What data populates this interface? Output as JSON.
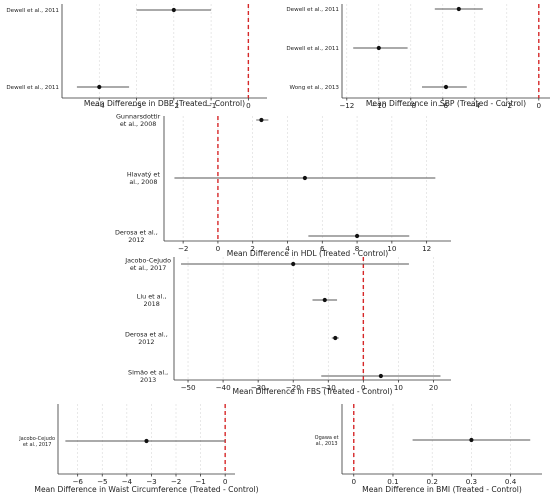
{
  "chart_data": [
    {
      "type": "scatter",
      "xlabel": "Mean Difference in DBP (Treated - Control)",
      "xlim": [
        -5,
        0.5
      ],
      "xticks": [
        -4,
        -3,
        -2,
        -1,
        0
      ],
      "studies": [
        {
          "label": "Dewell et al., 2011",
          "mean": -2.0,
          "ci": [
            -3.0,
            -1.0
          ]
        },
        {
          "label": "Dewell et al., 2011",
          "mean": -4.0,
          "ci": [
            -4.6,
            -3.2
          ]
        }
      ]
    },
    {
      "type": "scatter",
      "xlabel": "Mean Difference in SBP (Treated - Control)",
      "xlim": [
        -12.3,
        0.7
      ],
      "xticks": [
        -12,
        -10,
        -8,
        -6,
        -4,
        -2,
        0
      ],
      "studies": [
        {
          "label": "Dewell et al., 2011",
          "mean": -5.0,
          "ci": [
            -6.5,
            -3.5
          ]
        },
        {
          "label": "Dewell et al., 2011",
          "mean": -10.0,
          "ci": [
            -11.6,
            -8.2
          ]
        },
        {
          "label": "Wong et al., 2013",
          "mean": -5.8,
          "ci": [
            -7.3,
            -4.5
          ]
        }
      ]
    },
    {
      "type": "scatter",
      "xlabel": "Mean Difference in HDL (Treated - Control)",
      "xlim": [
        -3.1,
        13.4
      ],
      "xticks": [
        -2,
        0,
        2,
        4,
        6,
        8,
        10,
        12
      ],
      "studies": [
        {
          "label": "Gunnarsdottir et al., 2008",
          "mean": 2.5,
          "ci": [
            2.2,
            2.9
          ]
        },
        {
          "label": "Hlavatý et al., 2008",
          "mean": 5.0,
          "ci": [
            -2.5,
            12.5
          ]
        },
        {
          "label": "Derosa et al., 2012",
          "mean": 8.0,
          "ci": [
            5.2,
            11.0
          ]
        }
      ]
    },
    {
      "type": "scatter",
      "xlabel": "Mean Difference in FBS (Treated - Control)",
      "xlim": [
        -54,
        25
      ],
      "xticks": [
        -50,
        -40,
        -30,
        -20,
        -10,
        0,
        10,
        20
      ],
      "studies": [
        {
          "label": "Jacobo-Cejudo et al., 2017",
          "mean": -20.0,
          "ci": [
            -52.0,
            13.0
          ]
        },
        {
          "label": "Liu et al., 2018",
          "mean": -11.0,
          "ci": [
            -14.5,
            -7.5
          ]
        },
        {
          "label": "Derosa et al., 2012",
          "mean": -8.0,
          "ci": [
            -9.0,
            -7.0
          ]
        },
        {
          "label": "Simão et al., 2013",
          "mean": 5.0,
          "ci": [
            -12.0,
            22.0
          ]
        }
      ]
    },
    {
      "type": "scatter",
      "xlabel": "Mean Difference in Waist Circumference (Treated - Control)",
      "xlim": [
        -6.8,
        0.4
      ],
      "xticks": [
        -6,
        -5,
        -4,
        -3,
        -2,
        -1,
        0
      ],
      "studies": [
        {
          "label": "Jacobo-Cejudo et al., 2017",
          "mean": -3.2,
          "ci": [
            -6.5,
            0.0
          ]
        }
      ]
    },
    {
      "type": "scatter",
      "xlabel": "Mean Difference in BMI (Treated - Control)",
      "xlim": [
        -0.03,
        0.48
      ],
      "xticks": [
        0.0,
        0.1,
        0.2,
        0.3,
        0.4
      ],
      "studies": [
        {
          "label": "Ogawa et al., 2013",
          "mean": 0.3,
          "ci": [
            0.15,
            0.45
          ]
        }
      ]
    }
  ]
}
